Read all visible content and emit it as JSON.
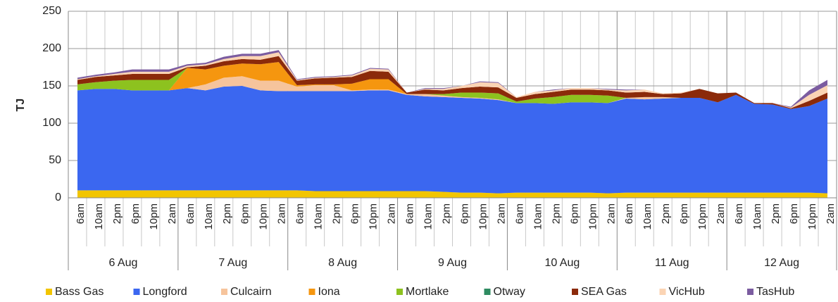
{
  "chart_data": {
    "type": "stacked-area",
    "y_label": "TJ",
    "categories": [
      "6am",
      "10am",
      "2pm",
      "6pm",
      "10pm",
      "2am",
      "6am",
      "10am",
      "2pm",
      "6pm",
      "10pm",
      "2am",
      "6am",
      "10am",
      "2pm",
      "6pm",
      "10pm",
      "2am",
      "6am",
      "10am",
      "2pm",
      "6pm",
      "10pm",
      "2am",
      "6am",
      "10am",
      "2pm",
      "6pm",
      "10pm",
      "2am",
      "6am",
      "10am",
      "2pm",
      "6pm",
      "10pm",
      "2am",
      "6am",
      "10am",
      "2pm",
      "6pm",
      "10pm",
      "2am"
    ],
    "x_groups": [
      "6 Aug",
      "7 Aug",
      "8 Aug",
      "9 Aug",
      "10 Aug",
      "11 Aug",
      "12 Aug"
    ],
    "ylim": [
      0,
      250
    ],
    "yticks": [
      0,
      50,
      100,
      150,
      200,
      250
    ],
    "grid": true,
    "series": [
      {
        "name": "Bass Gas",
        "color": "#f2c500",
        "values": [
          10,
          10,
          10,
          10,
          10,
          10,
          10,
          10,
          10,
          10,
          10,
          10,
          10,
          9,
          9,
          9,
          9,
          9,
          9,
          9,
          8,
          7,
          7,
          6,
          7,
          7,
          7,
          7,
          7,
          6,
          7,
          7,
          7,
          7,
          7,
          7,
          7,
          7,
          7,
          7,
          7,
          6
        ]
      },
      {
        "name": "Longford",
        "color": "#3b67f0",
        "values": [
          134,
          136,
          136,
          134,
          134,
          134,
          137,
          134,
          139,
          140,
          134,
          133,
          133,
          134,
          134,
          134,
          135,
          135,
          129,
          127,
          127,
          127,
          126,
          125,
          120,
          120,
          119,
          121,
          121,
          121,
          126,
          125,
          126,
          127,
          127,
          121,
          131,
          119,
          118,
          112,
          116,
          127
        ]
      },
      {
        "name": "Culcairn",
        "color": "#f6c49c",
        "values": [
          0,
          0,
          0,
          0,
          0,
          0,
          0,
          8,
          12,
          13,
          13,
          14,
          6,
          8,
          8,
          1,
          1,
          1,
          1,
          3,
          2,
          1,
          1,
          1,
          0,
          0,
          0,
          0,
          0,
          0,
          1,
          3,
          2,
          0,
          0,
          0,
          0,
          0,
          0,
          0,
          0,
          0
        ]
      },
      {
        "name": "Iona",
        "color": "#f5960f",
        "values": [
          0,
          0,
          0,
          0,
          0,
          0,
          27,
          20,
          16,
          17,
          22,
          25,
          2,
          1,
          1,
          9,
          14,
          14,
          0,
          0,
          0,
          0,
          0,
          0,
          0,
          0,
          0,
          0,
          0,
          0,
          0,
          0,
          0,
          0,
          0,
          0,
          0,
          0,
          0,
          0,
          0,
          0
        ]
      },
      {
        "name": "Mortlake",
        "color": "#8dc21f",
        "values": [
          8,
          9,
          11,
          14,
          14,
          14,
          0,
          0,
          0,
          0,
          0,
          0,
          0,
          0,
          0,
          0,
          0,
          0,
          0,
          0,
          2,
          6,
          7,
          8,
          2,
          6,
          9,
          10,
          10,
          10,
          0,
          0,
          0,
          0,
          0,
          0,
          0,
          0,
          0,
          0,
          0,
          0
        ]
      },
      {
        "name": "Otway",
        "color": "#2e8b61",
        "values": [
          0,
          0,
          0,
          0,
          0,
          0,
          0,
          0,
          0,
          0,
          0,
          0,
          0,
          0,
          0,
          0,
          0,
          0,
          0,
          0,
          0,
          0,
          0,
          0,
          0,
          0,
          0,
          0,
          0,
          0,
          0,
          0,
          0,
          0,
          0,
          0,
          0,
          0,
          0,
          0,
          0,
          0
        ]
      },
      {
        "name": "SEA Gas",
        "color": "#8b2a0a",
        "values": [
          6,
          7,
          7,
          8,
          8,
          8,
          1,
          5,
          6,
          6,
          6,
          8,
          6,
          8,
          9,
          9,
          11,
          10,
          2,
          6,
          5,
          6,
          8,
          8,
          5,
          6,
          7,
          7,
          7,
          7,
          7,
          7,
          4,
          6,
          12,
          12,
          3,
          1,
          2,
          1,
          7,
          8
        ]
      },
      {
        "name": "VicHub",
        "color": "#fbd4b4",
        "values": [
          1,
          1,
          2,
          3,
          3,
          3,
          2,
          2,
          3,
          4,
          5,
          5,
          1,
          1,
          1,
          2,
          3,
          3,
          0,
          1,
          2,
          3,
          6,
          6,
          1,
          3,
          2,
          2,
          2,
          1,
          3,
          3,
          1,
          1,
          0,
          0,
          0,
          0,
          0,
          1,
          8,
          10
        ]
      },
      {
        "name": "TasHub",
        "color": "#7b5ca0",
        "values": [
          2,
          2,
          2,
          3,
          3,
          3,
          2,
          2,
          3,
          3,
          3,
          3,
          1,
          1,
          1,
          1,
          1,
          1,
          0,
          1,
          1,
          0,
          1,
          1,
          0,
          0,
          1,
          0,
          0,
          1,
          1,
          0,
          0,
          0,
          0,
          0,
          0,
          0,
          0,
          1,
          6,
          7
        ]
      }
    ]
  }
}
